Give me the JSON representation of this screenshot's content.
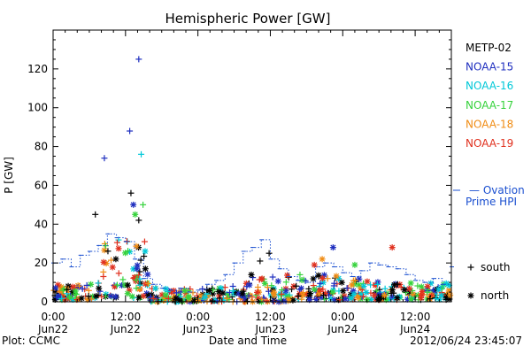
{
  "chart_data": {
    "type": "scatter",
    "title": "Hemispheric Power [GW]",
    "ylabel": "P [GW]",
    "xlabel": "Date and Time",
    "ylim": [
      0,
      140
    ],
    "yticks": [
      0,
      20,
      40,
      60,
      80,
      100,
      120
    ],
    "xlim_hours": [
      0,
      66
    ],
    "xticks": [
      {
        "hour": 0,
        "time": "0:00",
        "date": "Jun22"
      },
      {
        "hour": 12,
        "time": "12:00",
        "date": "Jun22"
      },
      {
        "hour": 24,
        "time": "0:00",
        "date": "Jun23"
      },
      {
        "hour": 36,
        "time": "12:00",
        "date": "Jun23"
      },
      {
        "hour": 48,
        "time": "0:00",
        "date": "Jun24"
      },
      {
        "hour": 60,
        "time": "12:00",
        "date": "Jun24"
      }
    ],
    "legend": {
      "position": "right",
      "satellites": [
        {
          "name": "METP-02",
          "color": "#000000"
        },
        {
          "name": "NOAA-15",
          "color": "#1f2fbf"
        },
        {
          "name": "NOAA-16",
          "color": "#00c8d8"
        },
        {
          "name": "NOAA-17",
          "color": "#36d23c"
        },
        {
          "name": "NOAA-18",
          "color": "#f08c14"
        },
        {
          "name": "NOAA-19",
          "color": "#e0301e"
        }
      ],
      "model": {
        "line1": "Ovation",
        "line2": "Prime HPI",
        "color": "#1a4fd0"
      },
      "markers": [
        {
          "symbol": "+",
          "label": "south"
        },
        {
          "symbol": "*",
          "label": "north"
        }
      ]
    },
    "ovation_series": [
      [
        0,
        20
      ],
      [
        1.5,
        22
      ],
      [
        3,
        18
      ],
      [
        4.5,
        24
      ],
      [
        6,
        26
      ],
      [
        7.5,
        29
      ],
      [
        9,
        35
      ],
      [
        10.5,
        33
      ],
      [
        12,
        31
      ],
      [
        13.5,
        22
      ],
      [
        15,
        12
      ],
      [
        16.5,
        9
      ],
      [
        18,
        7
      ],
      [
        19.5,
        6
      ],
      [
        21,
        7
      ],
      [
        22.5,
        5
      ],
      [
        24,
        6
      ],
      [
        25.5,
        9
      ],
      [
        27,
        11
      ],
      [
        28.5,
        14
      ],
      [
        30,
        20
      ],
      [
        31.5,
        26
      ],
      [
        33,
        28
      ],
      [
        34.5,
        32
      ],
      [
        36,
        22
      ],
      [
        37.5,
        17
      ],
      [
        39,
        13
      ],
      [
        40.5,
        11
      ],
      [
        42,
        10
      ],
      [
        43.5,
        18
      ],
      [
        45,
        20
      ],
      [
        46.5,
        18
      ],
      [
        48,
        15
      ],
      [
        49.5,
        13
      ],
      [
        51,
        16
      ],
      [
        52.5,
        20
      ],
      [
        54,
        19
      ],
      [
        55.5,
        18
      ],
      [
        57,
        17
      ],
      [
        58.5,
        14
      ],
      [
        60,
        11
      ],
      [
        61.5,
        10
      ],
      [
        63,
        12
      ],
      [
        64.5,
        9
      ],
      [
        66,
        18
      ]
    ],
    "highlight_points": [
      {
        "hour": 14.2,
        "value": 125,
        "satellite": "NOAA-15",
        "marker": "+"
      },
      {
        "hour": 12.7,
        "value": 88,
        "satellite": "NOAA-15",
        "marker": "+"
      },
      {
        "hour": 8.5,
        "value": 74,
        "satellite": "NOAA-15",
        "marker": "+"
      },
      {
        "hour": 14.6,
        "value": 76,
        "satellite": "NOAA-16",
        "marker": "+"
      },
      {
        "hour": 12.9,
        "value": 56,
        "satellite": "METP-02",
        "marker": "+"
      },
      {
        "hour": 13.3,
        "value": 50,
        "satellite": "NOAA-15",
        "marker": "*"
      },
      {
        "hour": 14.9,
        "value": 50,
        "satellite": "NOAA-17",
        "marker": "+"
      },
      {
        "hour": 7.0,
        "value": 45,
        "satellite": "METP-02",
        "marker": "+"
      },
      {
        "hour": 14.2,
        "value": 42,
        "satellite": "METP-02",
        "marker": "+"
      },
      {
        "hour": 13.6,
        "value": 45,
        "satellite": "NOAA-17",
        "marker": "*"
      },
      {
        "hour": 46.4,
        "value": 28,
        "satellite": "NOAA-15",
        "marker": "*"
      },
      {
        "hour": 56.2,
        "value": 28,
        "satellite": "NOAA-19",
        "marker": "*"
      },
      {
        "hour": 35.8,
        "value": 25,
        "satellite": "METP-02",
        "marker": "+"
      },
      {
        "hour": 44.6,
        "value": 22,
        "satellite": "NOAA-18",
        "marker": "*"
      },
      {
        "hour": 34.3,
        "value": 21,
        "satellite": "METP-02",
        "marker": "+"
      },
      {
        "hour": 43.3,
        "value": 19,
        "satellite": "NOAA-19",
        "marker": "*"
      },
      {
        "hour": 50.0,
        "value": 19,
        "satellite": "NOAA-17",
        "marker": "*"
      },
      {
        "hour": 15.3,
        "value": 17,
        "satellite": "METP-02",
        "marker": "*"
      },
      {
        "hour": 10.4,
        "value": 22,
        "satellite": "METP-02",
        "marker": "*"
      }
    ],
    "background_ranges": [
      {
        "from": 0,
        "to": 8,
        "lo": 1,
        "hi": 10
      },
      {
        "from": 8,
        "to": 16,
        "lo": 2,
        "hi": 32
      },
      {
        "from": 16,
        "to": 24,
        "lo": 0,
        "hi": 7
      },
      {
        "from": 24,
        "to": 32,
        "lo": 0,
        "hi": 8
      },
      {
        "from": 32,
        "to": 40,
        "lo": 0,
        "hi": 14
      },
      {
        "from": 40,
        "to": 48,
        "lo": 1,
        "hi": 14
      },
      {
        "from": 48,
        "to": 56,
        "lo": 1,
        "hi": 12
      },
      {
        "from": 56,
        "to": 66,
        "lo": 1,
        "hi": 10
      }
    ]
  },
  "footer": {
    "left": "Plot: CCMC",
    "right": "2012/06/24 23:45:07"
  }
}
